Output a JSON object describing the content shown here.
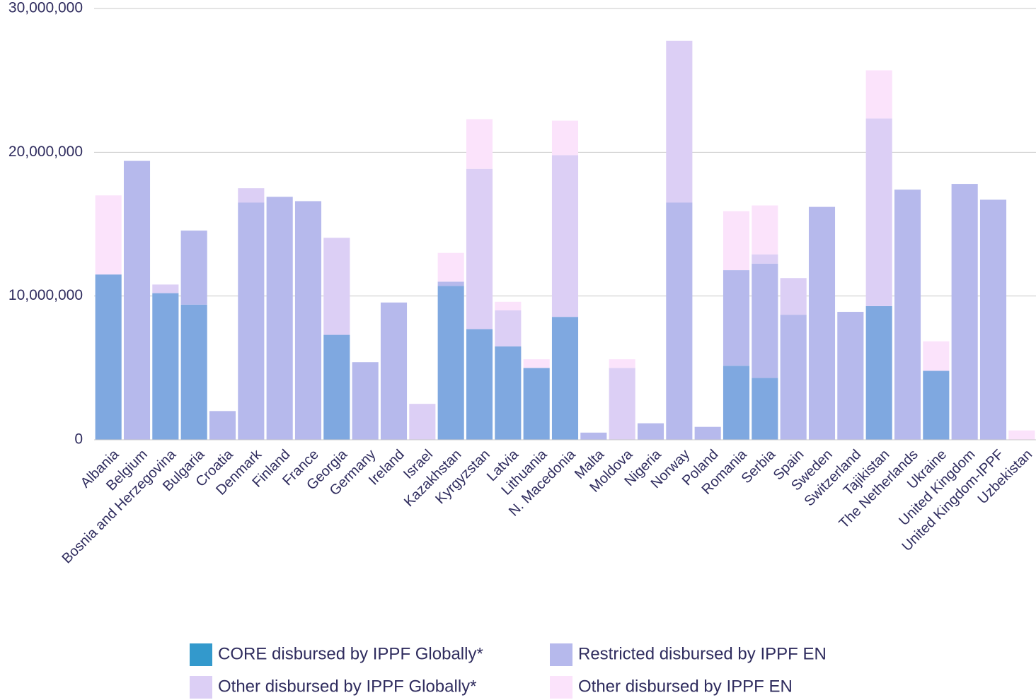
{
  "chart_data": {
    "type": "stacked_bar",
    "categories": [
      "Albania",
      "Belgium",
      "Bosnia and Herzegovina",
      "Bulgaria",
      "Croatia",
      "Denmark",
      "Finland",
      "France",
      "Georgia",
      "Germany",
      "Ireland",
      "Israel",
      "Kazakhstan",
      "Kyrgyzstan",
      "Latvia",
      "Lithuania",
      "N. Macedonia",
      "Malta",
      "Moldova",
      "Nigeria",
      "Norway",
      "Poland",
      "Romania",
      "Serbia",
      "Spain",
      "Sweden",
      "Switzerland",
      "Tajikistan",
      "The Netherlands",
      "Ukraine",
      "United Kingdom",
      "United Kingdom-IPPF",
      "Uzbekistan"
    ],
    "series": [
      {
        "name": "CORE disbursed by IPPF Globally*",
        "color": "#7fa8e0",
        "values": [
          11500000,
          0,
          10200000,
          9400000,
          0,
          0,
          0,
          0,
          7300000,
          0,
          0,
          0,
          10700000,
          7700000,
          6500000,
          5000000,
          8550000,
          0,
          0,
          0,
          0,
          0,
          5150000,
          4300000,
          0,
          0,
          0,
          9300000,
          0,
          4800000,
          0,
          0,
          0
        ]
      },
      {
        "name": "Restricted disbursed by IPPF EN",
        "color": "#b6b9ec",
        "values": [
          0,
          19400000,
          0,
          5150000,
          2000000,
          16500000,
          16900000,
          16600000,
          0,
          5400000,
          9550000,
          0,
          300000,
          0,
          0,
          0,
          0,
          500000,
          0,
          1150000,
          16500000,
          900000,
          6650000,
          7950000,
          8700000,
          16200000,
          8900000,
          0,
          17400000,
          0,
          17800000,
          16700000,
          0
        ]
      },
      {
        "name": "Other disbursed by IPPF Globally*",
        "color": "#dccff5",
        "values": [
          0,
          0,
          600000,
          0,
          0,
          1000000,
          0,
          0,
          6750000,
          0,
          0,
          2500000,
          0,
          11150000,
          2500000,
          0,
          11250000,
          0,
          5000000,
          0,
          11250000,
          0,
          0,
          650000,
          2550000,
          0,
          0,
          13050000,
          0,
          0,
          0,
          0,
          0
        ]
      },
      {
        "name": "Other disbursed by IPPF EN",
        "color": "#fbe3fb",
        "values": [
          5500000,
          0,
          0,
          0,
          0,
          0,
          0,
          0,
          0,
          0,
          0,
          0,
          2000000,
          3450000,
          600000,
          600000,
          2400000,
          0,
          600000,
          0,
          0,
          0,
          4100000,
          3400000,
          0,
          0,
          0,
          3350000,
          0,
          2050000,
          0,
          0,
          650000
        ]
      }
    ],
    "ylim": [
      0,
      30000000
    ],
    "yticks": [
      0,
      {
        "value": 10000000,
        "label": "10,000,000"
      },
      {
        "value": 20000000,
        "label": "20,000,000"
      },
      {
        "value": 30000000,
        "label": "30,000,000"
      }
    ],
    "grid": true,
    "legend": "bottom"
  }
}
